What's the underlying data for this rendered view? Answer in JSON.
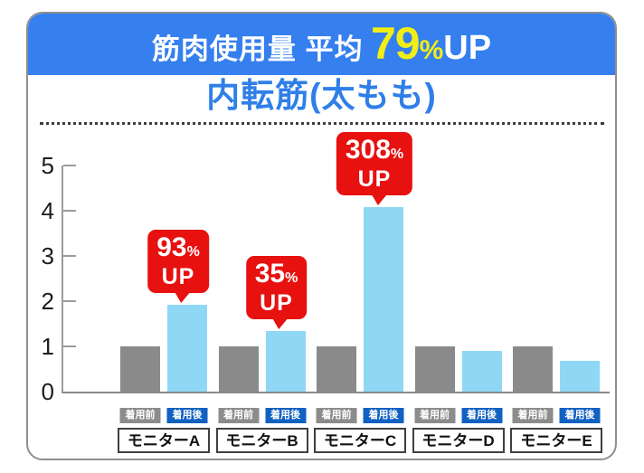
{
  "header": {
    "title": "筋肉使用量 平均",
    "highlight_value": "79",
    "percent_sign": "%",
    "up_text": "UP"
  },
  "subtitle": "内転筋(太もも)",
  "colors": {
    "header_bg": "#357fee",
    "header_text": "#ffffff",
    "highlight_yellow": "#f2ee15",
    "subtitle_text": "#2f7fe8",
    "bar_before": "#8a8a8a",
    "bar_after": "#8fd8f5",
    "badge_before_bg": "#8c8c8c",
    "badge_after_bg": "#1161c1",
    "callout_bg": "#e71110",
    "axis": "#9b9b9b"
  },
  "chart_data": {
    "type": "bar",
    "title": "筋肉使用量 平均79%UP",
    "subtitle": "内転筋(太もも)",
    "categories": [
      "モニターA",
      "モニターB",
      "モニターC",
      "モニターD",
      "モニターE"
    ],
    "series": [
      {
        "name": "着用前",
        "color": "#8a8a8a",
        "values": [
          1.0,
          1.0,
          1.0,
          1.0,
          1.0
        ]
      },
      {
        "name": "着用後",
        "color": "#8fd8f5",
        "values": [
          1.93,
          1.35,
          4.08,
          0.9,
          0.68
        ]
      }
    ],
    "callouts": [
      {
        "category_index": 0,
        "value": "93",
        "unit": "%",
        "suffix": "UP"
      },
      {
        "category_index": 1,
        "value": "35",
        "unit": "%",
        "suffix": "UP"
      },
      {
        "category_index": 2,
        "value": "308",
        "unit": "%",
        "suffix": "UP"
      }
    ],
    "xlabel": "",
    "ylabel": "",
    "ylim": [
      0,
      5
    ],
    "yticks": [
      0,
      1,
      2,
      3,
      4,
      5
    ],
    "grid": false,
    "legend_position": "per-group-below-bars"
  }
}
